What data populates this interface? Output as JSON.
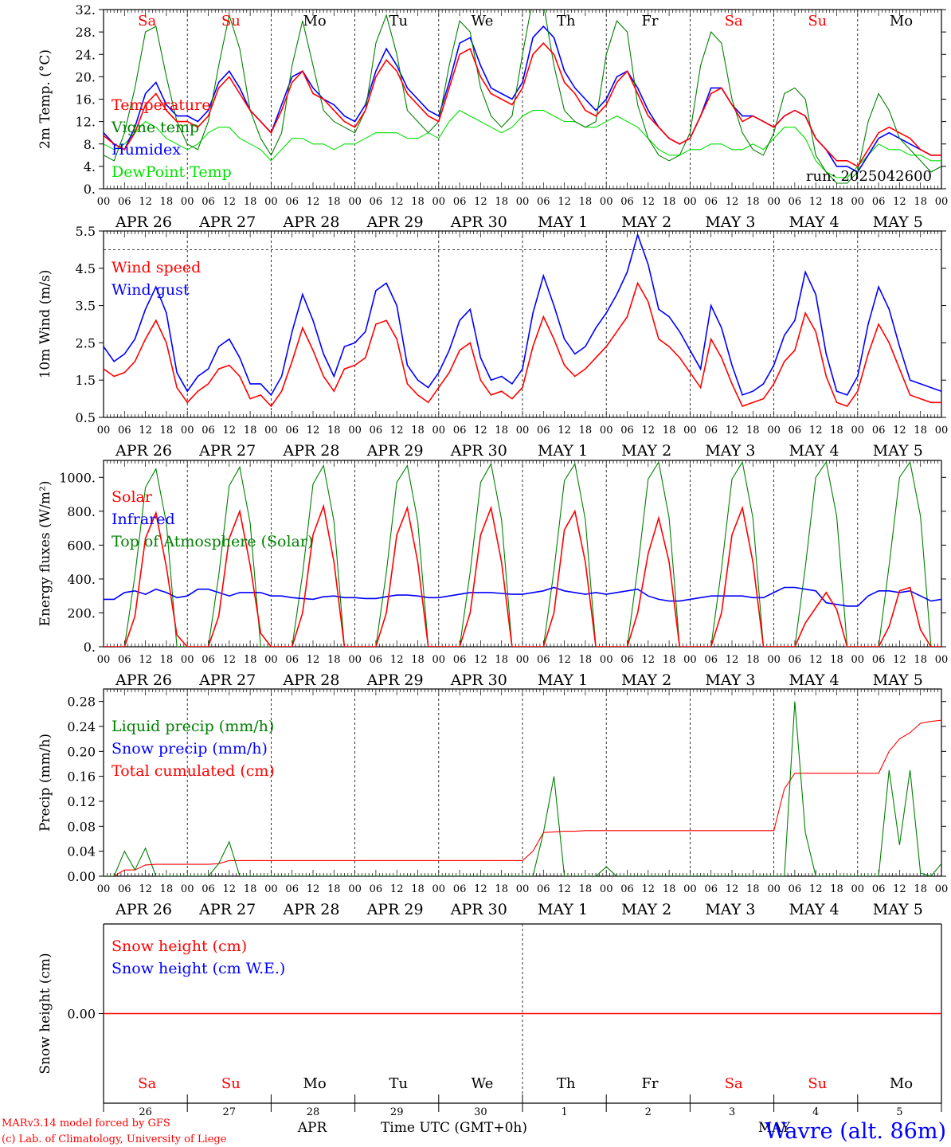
{
  "footer": {
    "credit_line1": "MARv3.14 model forced by GFS",
    "credit_line2": "(c) Lab. of Climatology, University of Liege",
    "location": "Wavre (alt. 86m)",
    "x_axis_label": "Time UTC (GMT+0h)",
    "month_apr": "APR",
    "month_may": "MAY"
  },
  "colors": {
    "red": "#ff0000",
    "blue": "#0000ff",
    "green": "#008000",
    "light_green": "#00e000",
    "grid": "#000000"
  },
  "axis": {
    "start": "2025-04-26T00:00Z",
    "days": 10,
    "hour_labels": [
      "00",
      "06",
      "12",
      "18"
    ],
    "date_labels": [
      "APR 26",
      "APR 27",
      "APR 28",
      "APR 29",
      "APR 30",
      "MAY 1",
      "MAY 2",
      "MAY 3",
      "MAY 4",
      "MAY 5"
    ],
    "weekday_labels": [
      "Sa",
      "Su",
      "Mo",
      "Tu",
      "We",
      "Th",
      "Fr",
      "Sa",
      "Su",
      "Mo"
    ],
    "weekend": [
      true,
      true,
      false,
      false,
      false,
      false,
      false,
      true,
      true,
      false
    ],
    "day_numbers": [
      "26",
      "27",
      "28",
      "29",
      "30",
      "1",
      "2",
      "3",
      "4",
      "5"
    ]
  },
  "chart_data": [
    {
      "type": "line",
      "id": "temp",
      "ylabel": "2m Temp. (°C)",
      "ylim": [
        0,
        32
      ],
      "yticks": [
        "0.",
        "4.",
        "8.",
        "12.",
        "16.",
        "20.",
        "24.",
        "28.",
        "32."
      ],
      "annotation": "run: 2025042600",
      "legend_position": "left",
      "series": [
        {
          "name": "Temperature",
          "color": "red",
          "values": [
            9.5,
            8,
            7,
            10,
            15,
            17,
            14,
            12,
            12,
            11,
            13,
            18,
            20,
            17,
            14,
            12,
            10,
            14,
            19,
            21,
            17,
            16,
            14,
            12,
            11,
            14,
            20,
            23,
            21,
            17,
            15,
            13,
            12,
            18,
            24,
            25,
            20,
            17,
            16,
            15,
            18,
            24,
            26,
            24,
            19,
            17,
            14,
            13,
            15,
            19,
            21,
            17,
            13,
            11,
            9,
            8,
            9,
            13,
            17,
            18,
            15,
            12,
            13,
            12,
            11,
            13,
            14,
            13,
            9,
            7,
            5,
            5,
            4,
            7,
            10,
            11,
            10,
            9,
            7,
            6,
            6
          ]
        },
        {
          "name": "Vigne temp",
          "color": "green",
          "values": [
            6,
            5,
            10,
            18,
            28,
            29,
            20,
            12,
            8,
            7,
            12,
            22,
            31,
            25,
            14,
            9,
            6,
            10,
            22,
            30,
            22,
            14,
            12,
            11,
            10,
            14,
            26,
            31,
            24,
            14,
            12,
            10,
            12,
            22,
            30,
            28,
            18,
            13,
            11,
            13,
            24,
            34,
            33,
            22,
            14,
            12,
            11,
            12,
            24,
            30,
            28,
            15,
            9,
            6,
            5,
            6,
            10,
            22,
            28,
            26,
            16,
            10,
            7,
            6,
            10,
            17,
            18,
            16,
            6,
            3,
            1,
            1,
            3,
            12,
            17,
            14,
            9,
            7,
            5,
            3,
            4
          ]
        },
        {
          "name": "Humidex",
          "color": "blue",
          "values": [
            10,
            8,
            7,
            11,
            17,
            19,
            15,
            13,
            13,
            12,
            14,
            19,
            21,
            18,
            14,
            12,
            10,
            15,
            20,
            21,
            18,
            16,
            15,
            13,
            12,
            15,
            21,
            25,
            22,
            18,
            16,
            14,
            13,
            19,
            26,
            27,
            22,
            18,
            17,
            16,
            19,
            27,
            29,
            27,
            21,
            18,
            16,
            14,
            16,
            20,
            21,
            18,
            14,
            11,
            9,
            8,
            9,
            13,
            18,
            18,
            15,
            13,
            13,
            12,
            11,
            13,
            14,
            13,
            9,
            7,
            4,
            4,
            3,
            6,
            9,
            10,
            9,
            8,
            7,
            6,
            6
          ]
        },
        {
          "name": "DewPoint Temp",
          "color": "light_green",
          "values": [
            8,
            7,
            8,
            10,
            12,
            11,
            9,
            8,
            7,
            8,
            10,
            11,
            11,
            9,
            8,
            7,
            5,
            7,
            9,
            9,
            8,
            8,
            7,
            8,
            8,
            9,
            10,
            10,
            10,
            9,
            9,
            10,
            9,
            12,
            14,
            13,
            12,
            11,
            10,
            11,
            13,
            14,
            14,
            13,
            12,
            12,
            11,
            11,
            12,
            13,
            12,
            11,
            9,
            7,
            6,
            6,
            7,
            7,
            8,
            8,
            7,
            7,
            8,
            7,
            9,
            11,
            11,
            9,
            5,
            3,
            2,
            2,
            4,
            6,
            8,
            7,
            7,
            6,
            6,
            5,
            5
          ]
        }
      ]
    },
    {
      "type": "line",
      "id": "wind",
      "ylabel": "10m Wind (m/s)",
      "ylim": [
        0.5,
        5.5
      ],
      "yticks": [
        "0.5",
        "1.5",
        "2.5",
        "3.5",
        "4.5",
        "5.5"
      ],
      "reference_line": 5.0,
      "legend_position": "left",
      "series": [
        {
          "name": "Wind speed",
          "color": "red",
          "values": [
            1.8,
            1.6,
            1.7,
            2.0,
            2.6,
            3.1,
            2.5,
            1.3,
            0.9,
            1.2,
            1.4,
            1.8,
            1.9,
            1.6,
            1.0,
            1.1,
            0.8,
            1.2,
            2.0,
            2.9,
            2.3,
            1.6,
            1.2,
            1.8,
            1.9,
            2.1,
            3.0,
            3.1,
            2.6,
            1.4,
            1.1,
            0.9,
            1.3,
            1.7,
            2.3,
            2.5,
            1.5,
            1.1,
            1.2,
            1.0,
            1.3,
            2.4,
            3.2,
            2.6,
            1.9,
            1.6,
            1.8,
            2.1,
            2.4,
            2.8,
            3.2,
            4.1,
            3.6,
            2.6,
            2.4,
            2.1,
            1.7,
            1.3,
            2.6,
            2.1,
            1.4,
            0.8,
            0.9,
            1.0,
            1.4,
            2.0,
            2.3,
            3.3,
            2.8,
            1.6,
            0.9,
            0.8,
            1.2,
            2.2,
            3.0,
            2.5,
            1.8,
            1.1,
            1.0,
            0.9,
            0.9
          ]
        },
        {
          "name": "Wind gust",
          "color": "blue",
          "values": [
            2.4,
            2.0,
            2.2,
            2.6,
            3.4,
            4.0,
            3.3,
            1.7,
            1.2,
            1.6,
            1.8,
            2.4,
            2.6,
            2.1,
            1.4,
            1.4,
            1.1,
            1.6,
            2.8,
            3.8,
            3.1,
            2.2,
            1.6,
            2.4,
            2.5,
            2.8,
            3.9,
            4.1,
            3.5,
            1.9,
            1.5,
            1.3,
            1.7,
            2.3,
            3.1,
            3.4,
            2.1,
            1.5,
            1.6,
            1.4,
            1.8,
            3.3,
            4.3,
            3.5,
            2.6,
            2.2,
            2.4,
            2.9,
            3.3,
            3.8,
            4.4,
            5.4,
            4.6,
            3.4,
            3.2,
            2.8,
            2.3,
            1.8,
            3.5,
            2.9,
            1.9,
            1.1,
            1.2,
            1.4,
            1.9,
            2.7,
            3.1,
            4.4,
            3.8,
            2.2,
            1.2,
            1.1,
            1.6,
            3.0,
            4.0,
            3.4,
            2.4,
            1.5,
            1.4,
            1.3,
            1.2
          ]
        }
      ]
    },
    {
      "type": "line",
      "id": "energy",
      "ylabel": "Energy fluxes (W/m²)",
      "ylim": [
        0,
        1100
      ],
      "yticks": [
        "0.",
        "200.",
        "400.",
        "600.",
        "800.",
        "1000."
      ],
      "legend_position": "left",
      "series": [
        {
          "name": "Solar",
          "color": "red",
          "values": [
            0,
            0,
            0,
            180,
            640,
            790,
            470,
            70,
            0,
            0,
            0,
            180,
            640,
            800,
            480,
            80,
            0,
            0,
            0,
            200,
            660,
            830,
            500,
            0,
            0,
            0,
            0,
            200,
            660,
            820,
            500,
            0,
            0,
            0,
            0,
            200,
            660,
            820,
            500,
            0,
            0,
            0,
            0,
            200,
            690,
            800,
            500,
            0,
            0,
            0,
            0,
            200,
            550,
            760,
            500,
            0,
            0,
            0,
            0,
            200,
            660,
            820,
            500,
            0,
            0,
            0,
            0,
            140,
            230,
            320,
            220,
            0,
            0,
            0,
            0,
            120,
            330,
            350,
            100,
            0,
            0
          ]
        },
        {
          "name": "Infrared",
          "color": "blue",
          "values": [
            280,
            280,
            320,
            330,
            310,
            340,
            320,
            290,
            300,
            340,
            340,
            320,
            300,
            320,
            320,
            320,
            300,
            300,
            290,
            285,
            280,
            295,
            300,
            290,
            290,
            285,
            285,
            295,
            305,
            305,
            300,
            290,
            290,
            300,
            310,
            320,
            320,
            320,
            315,
            310,
            310,
            320,
            330,
            350,
            330,
            320,
            310,
            320,
            310,
            320,
            330,
            340,
            300,
            280,
            270,
            270,
            280,
            290,
            300,
            300,
            300,
            300,
            290,
            290,
            320,
            350,
            350,
            340,
            330,
            260,
            250,
            240,
            240,
            300,
            330,
            330,
            320,
            330,
            300,
            270,
            280
          ]
        },
        {
          "name": "Top of Atmosphere (Solar)",
          "color": "green",
          "values": [
            0,
            0,
            0,
            420,
            940,
            1050,
            730,
            0,
            0,
            0,
            0,
            420,
            950,
            1060,
            730,
            0,
            0,
            0,
            0,
            430,
            960,
            1070,
            740,
            0,
            0,
            0,
            0,
            440,
            970,
            1070,
            740,
            0,
            0,
            0,
            0,
            440,
            970,
            1080,
            750,
            0,
            0,
            0,
            0,
            450,
            980,
            1080,
            750,
            0,
            0,
            0,
            0,
            460,
            990,
            1090,
            760,
            0,
            0,
            0,
            0,
            460,
            990,
            1090,
            760,
            0,
            0,
            0,
            0,
            470,
            1000,
            1090,
            770,
            0,
            0,
            0,
            0,
            480,
            1000,
            1090,
            770,
            0,
            0
          ]
        }
      ]
    },
    {
      "type": "line",
      "id": "precip",
      "ylabel": "Precip (mm/h)",
      "ylim": [
        0,
        0.3
      ],
      "yticks": [
        "0.00",
        "0.04",
        "0.08",
        "0.12",
        "0.16",
        "0.20",
        "0.24",
        "0.28"
      ],
      "legend_position": "left",
      "series": [
        {
          "name": "Liquid precip (mm/h)",
          "color": "green",
          "values": [
            0,
            0,
            0.04,
            0.01,
            0.045,
            0,
            0,
            0,
            0,
            0,
            0,
            0.02,
            0.055,
            0,
            0,
            0,
            0,
            0,
            0,
            0,
            0,
            0,
            0,
            0,
            0,
            0,
            0,
            0,
            0,
            0,
            0,
            0,
            0,
            0,
            0,
            0,
            0,
            0,
            0,
            0,
            0,
            0,
            0.07,
            0.16,
            0,
            0,
            0,
            0,
            0.015,
            0,
            0,
            0,
            0,
            0,
            0,
            0,
            0,
            0,
            0,
            0,
            0,
            0,
            0,
            0,
            0,
            0,
            0.28,
            0.07,
            0,
            0,
            0,
            0,
            0,
            0,
            0,
            0.17,
            0.05,
            0.17,
            0.005,
            0,
            0.02
          ]
        },
        {
          "name": "Snow precip (mm/h)",
          "color": "blue",
          "values": []
        },
        {
          "name": "Total cumulated (cm)",
          "color": "red",
          "values": [
            0,
            0,
            0.01,
            0.01,
            0.018,
            0.019,
            0.019,
            0.019,
            0.019,
            0.019,
            0.019,
            0.02,
            0.025,
            0.025,
            0.025,
            0.025,
            0.025,
            0.025,
            0.025,
            0.025,
            0.025,
            0.025,
            0.025,
            0.025,
            0.025,
            0.025,
            0.025,
            0.025,
            0.025,
            0.025,
            0.025,
            0.025,
            0.025,
            0.025,
            0.025,
            0.025,
            0.025,
            0.025,
            0.025,
            0.025,
            0.025,
            0.04,
            0.07,
            0.071,
            0.072,
            0.072,
            0.073,
            0.073,
            0.073,
            0.073,
            0.073,
            0.073,
            0.073,
            0.073,
            0.073,
            0.073,
            0.073,
            0.073,
            0.073,
            0.073,
            0.073,
            0.073,
            0.073,
            0.073,
            0.073,
            0.14,
            0.165,
            0.165,
            0.165,
            0.165,
            0.165,
            0.165,
            0.165,
            0.165,
            0.165,
            0.2,
            0.22,
            0.23,
            0.245,
            0.248,
            0.25
          ]
        }
      ]
    },
    {
      "type": "line",
      "id": "snow",
      "ylabel": "Snow height (cm)",
      "ylim": [
        -1,
        1
      ],
      "yticks": [
        "0.00"
      ],
      "legend_position": "left",
      "series": [
        {
          "name": "Snow height (cm)",
          "color": "red",
          "values": [
            0,
            0
          ]
        },
        {
          "name": "Snow height (cm W.E.)",
          "color": "blue",
          "values": []
        }
      ]
    }
  ]
}
